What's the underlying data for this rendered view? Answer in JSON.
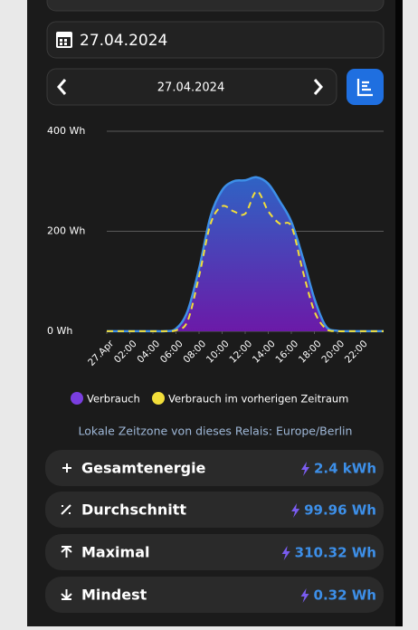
{
  "date_field": "27.04.2024",
  "nav": {
    "date": "27.04.2024"
  },
  "chart_data": {
    "type": "area",
    "x": [
      0,
      1,
      2,
      3,
      4,
      5,
      6,
      7,
      8,
      9,
      10,
      11,
      12,
      13,
      14,
      15,
      16,
      17,
      18,
      19,
      20,
      21,
      22,
      23,
      24
    ],
    "xlim": [
      0,
      24
    ],
    "xticks": [
      {
        "value": 0,
        "label": "27.Apr"
      },
      {
        "value": 2,
        "label": "02:00"
      },
      {
        "value": 4,
        "label": "04:00"
      },
      {
        "value": 6,
        "label": "06:00"
      },
      {
        "value": 8,
        "label": "08:00"
      },
      {
        "value": 10,
        "label": "10:00"
      },
      {
        "value": 12,
        "label": "12:00"
      },
      {
        "value": 14,
        "label": "14:00"
      },
      {
        "value": 16,
        "label": "16:00"
      },
      {
        "value": 18,
        "label": "18:00"
      },
      {
        "value": 20,
        "label": "20:00"
      },
      {
        "value": 22,
        "label": "22:00"
      }
    ],
    "ylim": [
      0,
      400
    ],
    "yticks": [
      {
        "value": 0,
        "label": "0 Wh"
      },
      {
        "value": 200,
        "label": "200 Wh"
      },
      {
        "value": 400,
        "label": "400 Wh"
      }
    ],
    "grid": true,
    "series": [
      {
        "name": "Verbrauch",
        "color": "#3d8fe8",
        "values": [
          0.3,
          0.3,
          0.3,
          0.3,
          0.3,
          0.3,
          5,
          40,
          125,
          230,
          282,
          300,
          302,
          308,
          295,
          260,
          219,
          147,
          65,
          10,
          1,
          0.3,
          0.3,
          0.3,
          0.3
        ]
      },
      {
        "name": "Verbrauch im vorherigen Zeitraum",
        "color": "#f2de3a",
        "values": [
          0.3,
          0.3,
          0.3,
          0.3,
          0.3,
          0.3,
          2,
          20,
          110,
          215,
          250,
          240,
          235,
          280,
          240,
          215,
          210,
          120,
          40,
          5,
          0.3,
          0.3,
          0.3,
          0.3,
          0.3
        ]
      }
    ]
  },
  "timezone_note": "Lokale Zeitzone von dieses Relais: Europe/Berlin",
  "stats": [
    {
      "label": "Gesamtenergie",
      "value": "2.4 kWh"
    },
    {
      "label": "Durchschnitt",
      "value": "99.96 Wh"
    },
    {
      "label": "Maximal",
      "value": "310.32 Wh"
    },
    {
      "label": "Mindest",
      "value": "0.32 Wh"
    }
  ]
}
